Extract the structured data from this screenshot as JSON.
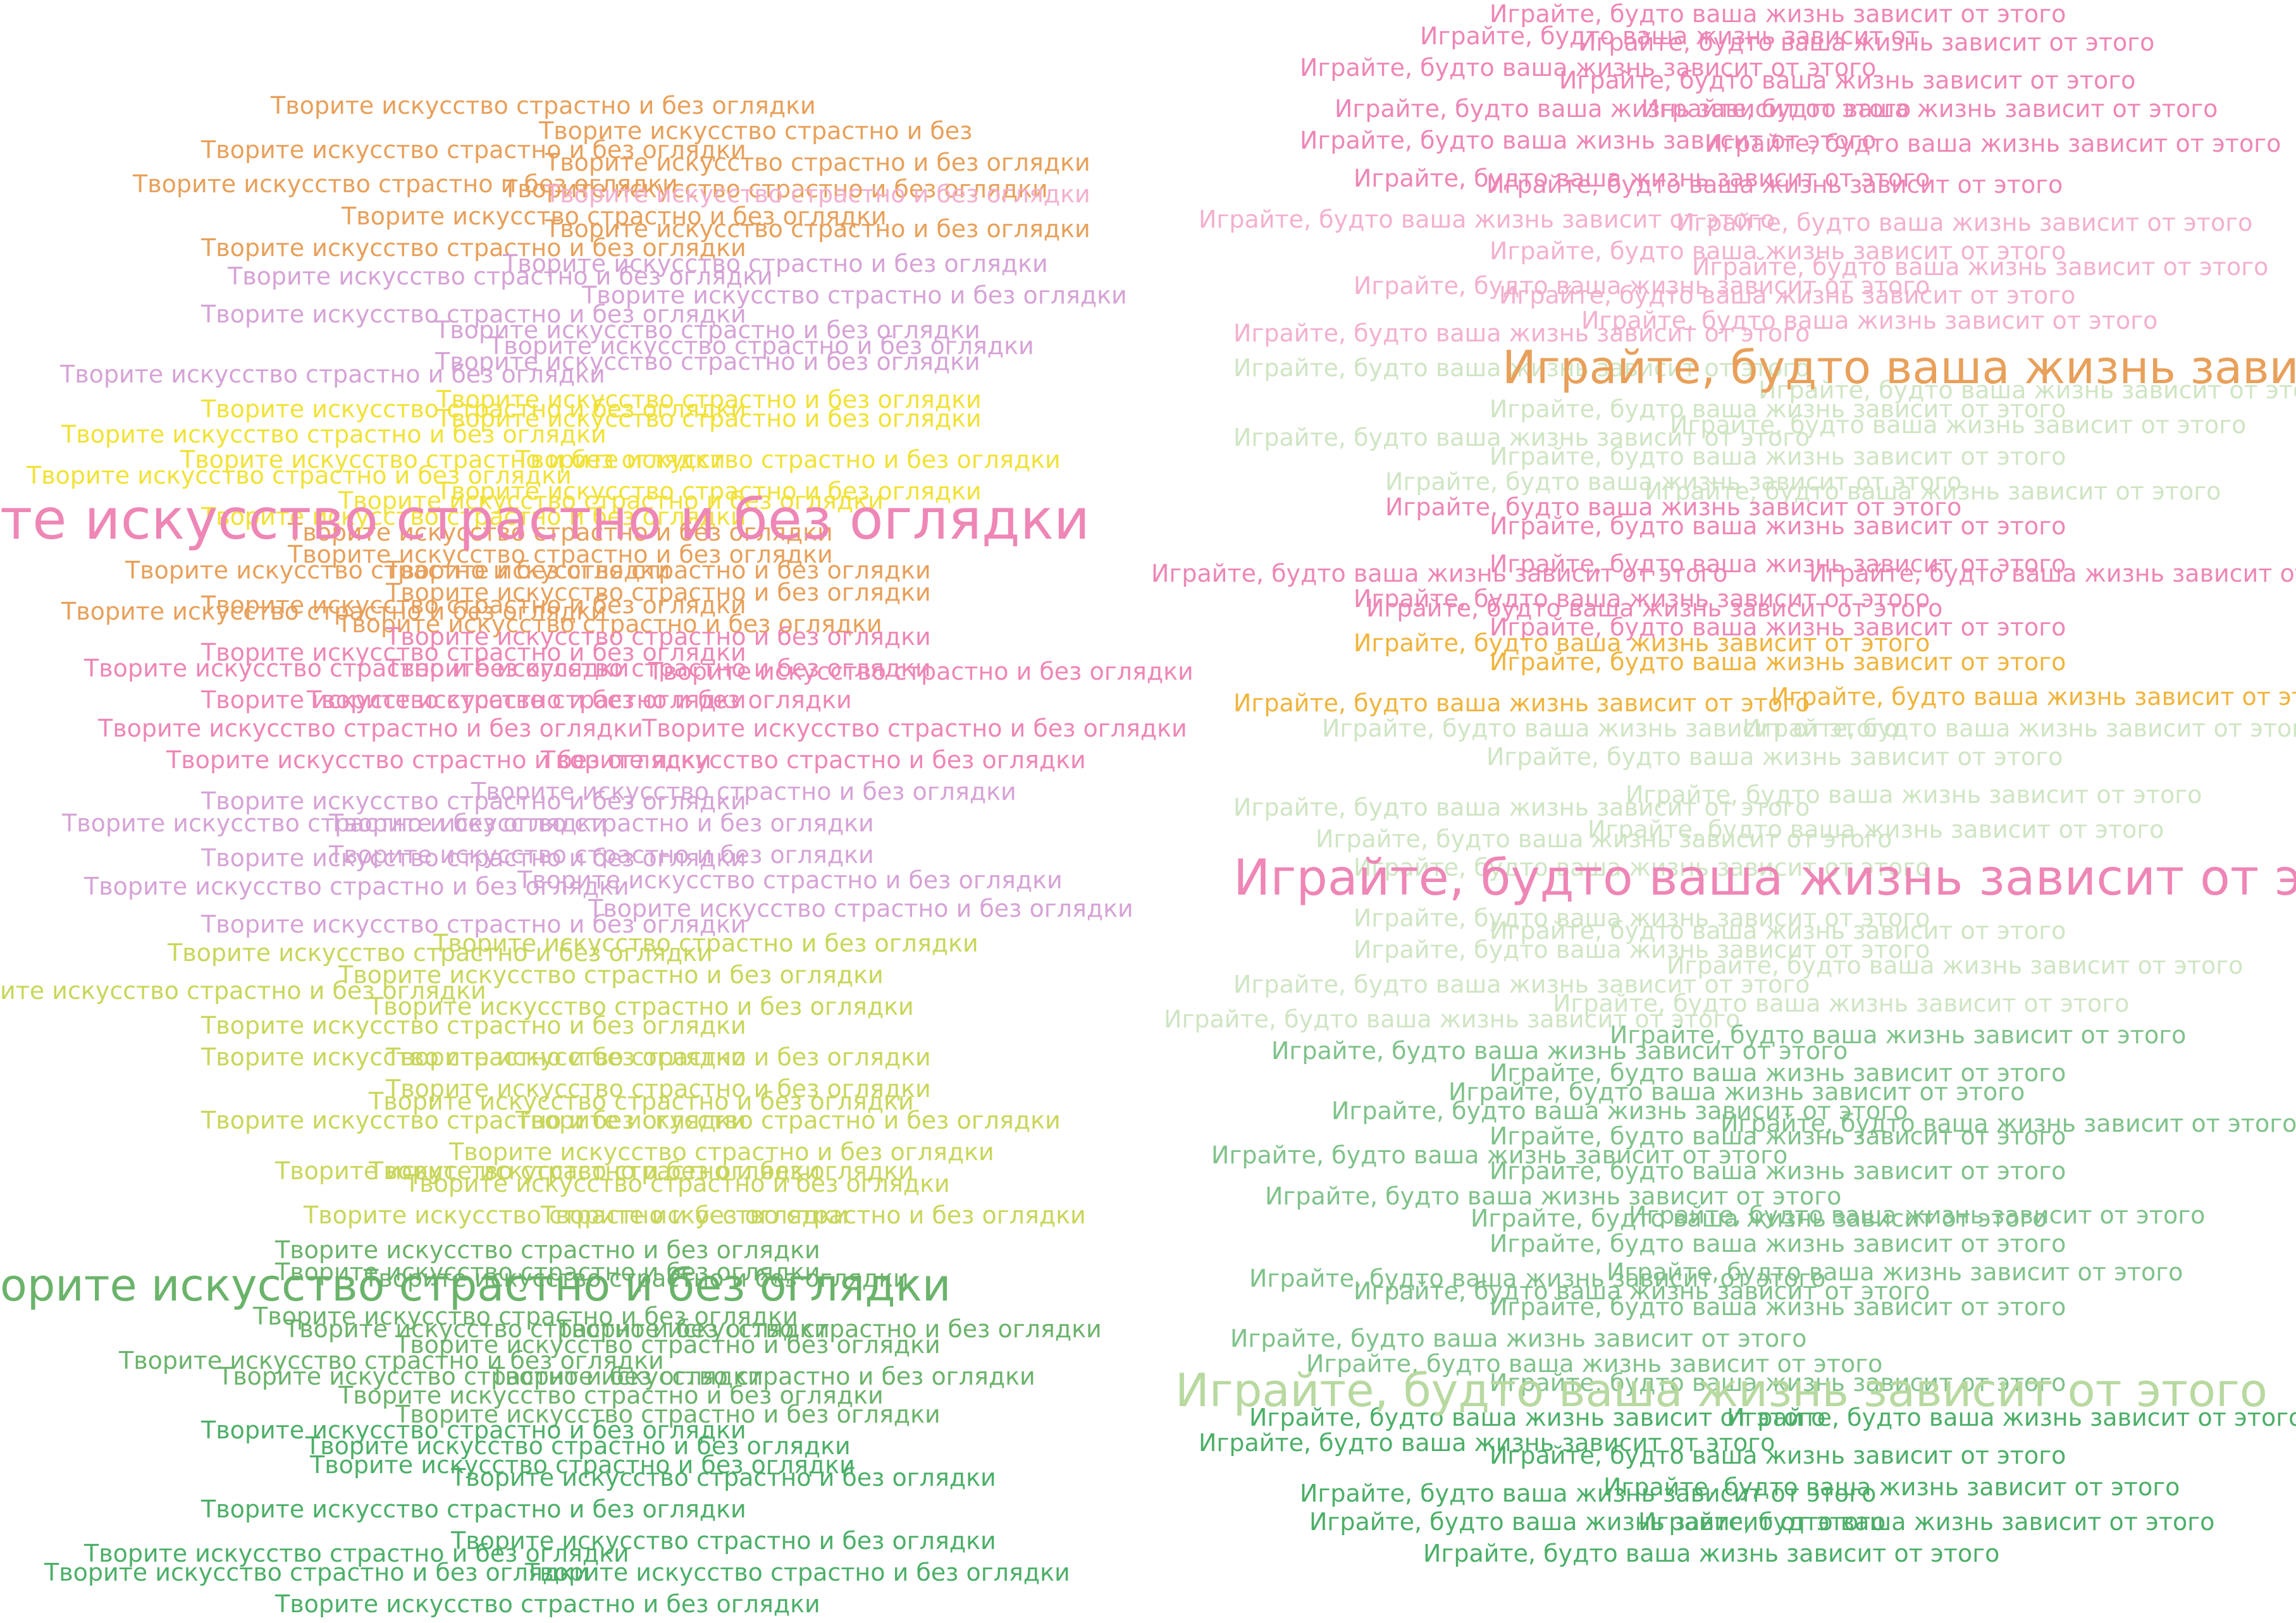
{
  "phrases": {
    "left": "Творите искусство страстно и без оглядки",
    "left_truncated_start": "ите искусство страстно и без оглядки",
    "left_truncated_big_top": "те искусство страстно и без оглядки",
    "left_truncated_big_bottom": "орите искусство страстно и без оглядки",
    "left_cut_end": "Творите искусство страстно и без",
    "right": "Играйте, будто ваша жизнь зависит от этого",
    "right_cut_end_1": "Играйте, будто ваша жизнь зависит от",
    "right_cut_end_2": "Играйте, будто ваша жизнь зависи",
    "right_cut_end_3": "Играйте, будто ваша жизнь зависит от это"
  },
  "colors": {
    "orange": "#e8a05a",
    "light_orange": "#efb980",
    "pink": "#ee86b6",
    "light_pink": "#f3b0cf",
    "violet": "#d6a3d6",
    "yellow": "#f1e236",
    "yellow_green": "#c9d65a",
    "light_green": "#b8d9a0",
    "pale_green": "#cfe5c3",
    "green": "#7fc28a",
    "mid_green": "#6bb36b",
    "dark_green": "#4caf68",
    "amber": "#f0b43c"
  }
}
